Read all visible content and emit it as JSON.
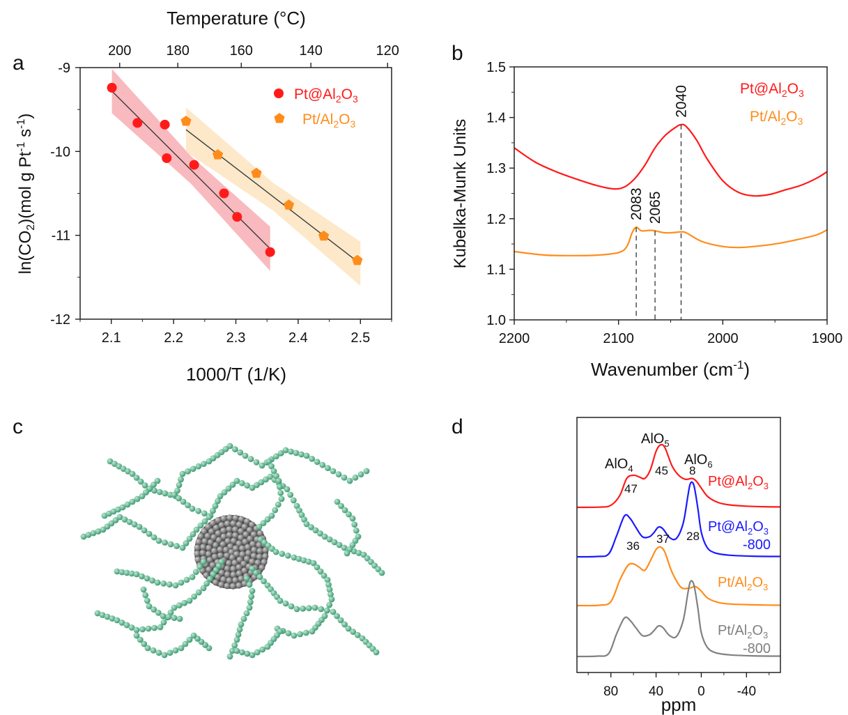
{
  "panels": {
    "a": {
      "letter": "a",
      "chart_data": {
        "type": "scatter",
        "xlabel": "1000/T (1/K)",
        "ylabel_main": "ln(CO",
        "ylabel_sub": "2",
        "ylabel_mid": ")(mol g Pt",
        "ylabel_sup1": "-1",
        "ylabel_s": " s",
        "ylabel_sup2": "-1",
        "ylabel_end": ")",
        "top_axis_label": "Temperature (°C)",
        "xlim": [
          2.05,
          2.55
        ],
        "ylim": [
          -12,
          -9
        ],
        "xticks": [
          2.1,
          2.2,
          2.3,
          2.4,
          2.5
        ],
        "yticks": [
          -12,
          -11,
          -10,
          -9
        ],
        "top_ticks": [
          200,
          180,
          160,
          140,
          120
        ],
        "series": [
          {
            "legend_prefix": "Pt@Al",
            "legend_sub1": "2",
            "legend_mid": "O",
            "legend_sub2": "3",
            "color": "#ff1a1a",
            "band_color": "#f5a3a8",
            "marker": "circle",
            "x": [
              2.101,
              2.142,
              2.186,
              2.189,
              2.233,
              2.281,
              2.302,
              2.355
            ],
            "y": [
              -9.24,
              -9.66,
              -9.68,
              -10.08,
              -10.16,
              -10.5,
              -10.78,
              -11.2
            ],
            "fit": {
              "x": [
                2.101,
                2.355
              ],
              "y": [
                -9.28,
                -11.16
              ]
            }
          },
          {
            "legend_prefix": "Pt/Al",
            "legend_sub1": "2",
            "legend_mid": "O",
            "legend_sub2": "3",
            "color": "#ff8c1a",
            "band_color": "#fde0b8",
            "marker": "pentagon",
            "x": [
              2.22,
              2.271,
              2.333,
              2.385,
              2.441,
              2.495
            ],
            "y": [
              -9.64,
              -10.04,
              -10.26,
              -10.64,
              -11.01,
              -11.3
            ],
            "fit": {
              "x": [
                2.22,
                2.5
              ],
              "y": [
                -9.74,
                -11.34
              ]
            }
          }
        ]
      }
    },
    "b": {
      "letter": "b",
      "chart_data": {
        "type": "line",
        "xlabel_main": "Wavenumber (cm",
        "xlabel_sup": "-1",
        "xlabel_end": ")",
        "ylabel": "Kubelka-Munk Units",
        "xlim": [
          2200,
          1900
        ],
        "ylim": [
          1.0,
          1.5
        ],
        "xticks": [
          2200,
          2100,
          2000,
          1900
        ],
        "yticks": [
          1.0,
          1.1,
          1.2,
          1.3,
          1.4,
          1.5
        ],
        "series": [
          {
            "legend_prefix": "Pt@Al",
            "legend_sub1": "2",
            "legend_mid": "O",
            "legend_sub2": "3",
            "color": "#ff1a1a",
            "x": [
              2200,
              2180,
              2160,
              2140,
              2120,
              2105,
              2095,
              2085,
              2075,
              2065,
              2055,
              2045,
              2040,
              2035,
              2025,
              2015,
              2000,
              1985,
              1970,
              1955,
              1940,
              1925,
              1910,
              1900
            ],
            "y": [
              1.34,
              1.312,
              1.293,
              1.278,
              1.265,
              1.259,
              1.262,
              1.278,
              1.305,
              1.34,
              1.365,
              1.381,
              1.386,
              1.382,
              1.355,
              1.318,
              1.275,
              1.252,
              1.245,
              1.248,
              1.257,
              1.266,
              1.28,
              1.293
            ]
          },
          {
            "legend_prefix": "Pt/Al",
            "legend_sub1": "2",
            "legend_mid": "O",
            "legend_sub2": "3",
            "color": "#ff8c1a",
            "x": [
              2200,
              2170,
              2140,
              2120,
              2100,
              2092,
              2087,
              2083,
              2078,
              2070,
              2065,
              2055,
              2045,
              2040,
              2035,
              2020,
              2000,
              1985,
              1970,
              1950,
              1930,
              1910,
              1900
            ],
            "y": [
              1.135,
              1.128,
              1.127,
              1.128,
              1.133,
              1.145,
              1.172,
              1.183,
              1.176,
              1.177,
              1.176,
              1.172,
              1.173,
              1.174,
              1.172,
              1.155,
              1.145,
              1.143,
              1.145,
              1.15,
              1.158,
              1.168,
              1.178
            ]
          }
        ],
        "annotations": [
          {
            "text": "2083",
            "x": 2083,
            "y_top": 1.183
          },
          {
            "text": "2065",
            "x": 2065,
            "y_top": 1.176
          },
          {
            "text": "2040",
            "x": 2040,
            "y_top": 1.386
          }
        ]
      }
    },
    "c": {
      "letter": "c"
    },
    "d": {
      "letter": "d",
      "chart_data": {
        "type": "line",
        "xlabel": "ppm",
        "xlim": [
          110,
          -70
        ],
        "xticks": [
          80,
          40,
          0,
          -40
        ],
        "series": [
          {
            "label_main": "Pt@Al",
            "label_sub1": "2",
            "label_mid": "O",
            "label_sub2": "3",
            "label_suffix": "",
            "color": "#ff1a1a",
            "x": [
              110,
              90,
              80,
              72,
              66,
              60,
              55,
              50,
              45,
              40,
              36,
              32,
              26,
              20,
              14,
              8,
              4,
              0,
              -6,
              -15,
              -25,
              -40,
              -55,
              -70
            ],
            "y": [
              0,
              0.003,
              0.025,
              0.15,
              0.36,
              0.4,
              0.38,
              0.36,
              0.47,
              0.7,
              0.78,
              0.74,
              0.52,
              0.4,
              0.35,
              0.36,
              0.32,
              0.24,
              0.13,
              0.06,
              0.03,
              0.015,
              0.008,
              0.005
            ]
          },
          {
            "label_main": "Pt@Al",
            "label_sub1": "2",
            "label_mid": "O",
            "label_sub2": "3",
            "label_suffix": "-800",
            "color": "#1a1aff",
            "x": [
              110,
              92,
              82,
              75,
              68,
              63,
              58,
              52,
              46,
              42,
              38,
              34,
              28,
              22,
              16,
              12,
              10,
              8,
              6,
              3,
              0,
              -5,
              -12,
              -25,
              -45,
              -70
            ],
            "y": [
              0,
              0.004,
              0.035,
              0.26,
              0.51,
              0.48,
              0.37,
              0.25,
              0.25,
              0.3,
              0.37,
              0.35,
              0.24,
              0.23,
              0.42,
              0.75,
              0.9,
              0.93,
              0.86,
              0.6,
              0.31,
              0.12,
              0.05,
              0.02,
              0.008,
              0.004
            ]
          },
          {
            "label_main": "Pt/Al",
            "label_sub1": "2",
            "label_mid": "O",
            "label_sub2": "3",
            "label_suffix": "",
            "color": "#ff8c1a",
            "x": [
              110,
              90,
              80,
              72,
              65,
              60,
              55,
              50,
              45,
              40,
              36,
              32,
              26,
              18,
              10,
              6,
              3,
              0,
              -6,
              -15,
              -25,
              -40,
              -55,
              -70
            ],
            "y": [
              0,
              0.004,
              0.05,
              0.32,
              0.5,
              0.52,
              0.48,
              0.44,
              0.56,
              0.7,
              0.73,
              0.66,
              0.42,
              0.23,
              0.22,
              0.24,
              0.22,
              0.18,
              0.09,
              0.04,
              0.02,
              0.012,
              0.007,
              0.004
            ]
          },
          {
            "label_main": "Pt/Al",
            "label_sub1": "2",
            "label_mid": "O",
            "label_sub2": "3",
            "label_suffix": "-800",
            "color": "#808080",
            "x": [
              110,
              92,
              82,
              75,
              68,
              63,
              58,
              52,
              46,
              42,
              38,
              34,
              28,
              22,
              16,
              12,
              10,
              8,
              6,
              3,
              0,
              -5,
              -12,
              -25,
              -45,
              -70
            ],
            "y": [
              0,
              0.004,
              0.035,
              0.28,
              0.48,
              0.45,
              0.36,
              0.26,
              0.27,
              0.32,
              0.38,
              0.36,
              0.26,
              0.25,
              0.45,
              0.78,
              0.92,
              0.94,
              0.86,
              0.6,
              0.3,
              0.12,
              0.05,
              0.02,
              0.008,
              0.004
            ]
          }
        ],
        "annotations": [
          {
            "text_main": "AlO",
            "text_sub": "4",
            "kind": "header"
          },
          {
            "text_main": "AlO",
            "text_sub": "5",
            "kind": "header"
          },
          {
            "text_main": "AlO",
            "text_sub": "6",
            "kind": "header"
          },
          {
            "text": "47",
            "kind": "value"
          },
          {
            "text": "45",
            "kind": "value"
          },
          {
            "text": "8",
            "kind": "value"
          },
          {
            "text": "36",
            "kind": "value"
          },
          {
            "text": "37",
            "kind": "value"
          },
          {
            "text": "28",
            "kind": "value"
          }
        ]
      }
    }
  }
}
